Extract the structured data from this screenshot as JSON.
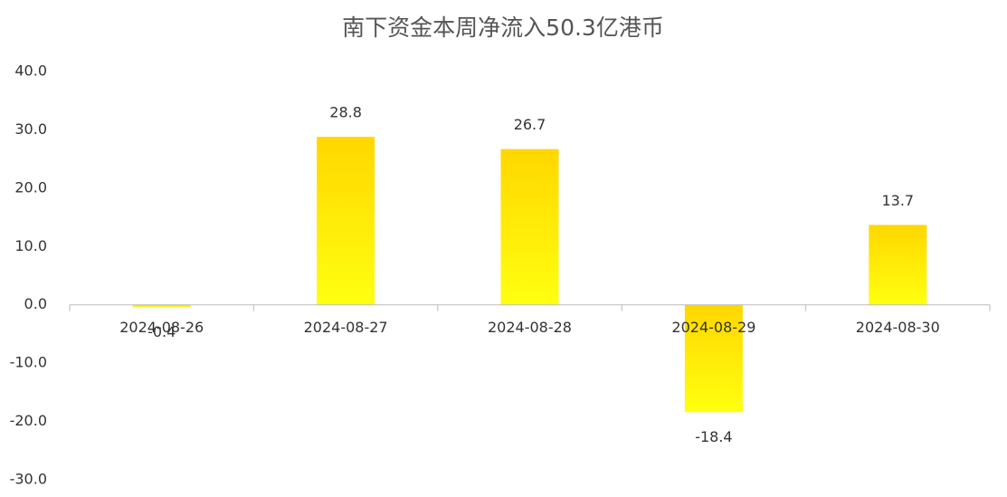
{
  "chart_data": {
    "type": "bar",
    "title": "南下资金本周净流入50.3亿港币",
    "categories": [
      "2024-08-26",
      "2024-08-27",
      "2024-08-28",
      "2024-08-29",
      "2024-08-30"
    ],
    "values": [
      -0.4,
      28.8,
      26.7,
      -18.4,
      13.7
    ],
    "color": "#ffd700",
    "ylim": [
      -30,
      40
    ],
    "yticks": [
      {
        "value": 40,
        "label": "40.0"
      },
      {
        "value": 30,
        "label": "30.0"
      },
      {
        "value": 20,
        "label": "20.0"
      },
      {
        "value": 10,
        "label": "10.0"
      },
      {
        "value": 0,
        "label": "0.0"
      },
      {
        "value": -10,
        "label": "-10.0"
      },
      {
        "value": -20,
        "label": "-20.0"
      },
      {
        "value": -30,
        "label": "-30.0"
      }
    ],
    "grid": false
  }
}
